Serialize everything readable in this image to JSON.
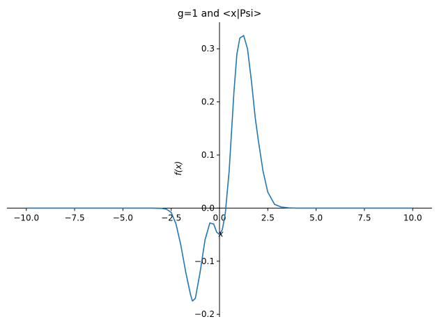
{
  "chart_data": {
    "type": "line",
    "title": "g=1 and <x|Psi>",
    "xlabel": "x",
    "ylabel": "f(x)",
    "xlim": [
      -11.0,
      11.0
    ],
    "ylim": [
      -0.205,
      0.35
    ],
    "xticks": [
      -10.0,
      -7.5,
      -5.0,
      -2.5,
      0.0,
      2.5,
      5.0,
      7.5,
      10.0
    ],
    "xtick_labels": [
      "−10.0",
      "−7.5",
      "−5.0",
      "−2.5",
      "0.0",
      "2.5",
      "5.0",
      "7.5",
      "10.0"
    ],
    "yticks": [
      -0.2,
      -0.1,
      0.0,
      0.1,
      0.2,
      0.3
    ],
    "ytick_labels": [
      "−0.2",
      "−0.1",
      "0.0",
      "0.1",
      "0.2",
      "0.3"
    ],
    "grid": false,
    "spines": "centered at origin",
    "series": [
      {
        "color": "#1f77b4",
        "x": [
          -10.0,
          -5.0,
          -3.5,
          -3.0,
          -2.75,
          -2.5,
          -2.25,
          -2.0,
          -1.75,
          -1.5,
          -1.4,
          -1.25,
          -1.0,
          -0.75,
          -0.5,
          -0.3,
          -0.15,
          0.0,
          0.15,
          0.3,
          0.5,
          0.75,
          0.9,
          1.05,
          1.25,
          1.45,
          1.65,
          1.85,
          2.0,
          2.25,
          2.5,
          2.85,
          3.2,
          3.6,
          4.0,
          5.0,
          10.0
        ],
        "y": [
          0.0,
          0.0,
          0.0,
          -0.0005,
          -0.002,
          -0.008,
          -0.03,
          -0.07,
          -0.12,
          -0.163,
          -0.175,
          -0.17,
          -0.12,
          -0.06,
          -0.028,
          -0.03,
          -0.045,
          -0.05,
          -0.04,
          -0.01,
          0.07,
          0.22,
          0.29,
          0.32,
          0.325,
          0.3,
          0.24,
          0.17,
          0.13,
          0.07,
          0.03,
          0.007,
          0.002,
          0.0005,
          0.0,
          0.0,
          0.0
        ]
      }
    ]
  }
}
